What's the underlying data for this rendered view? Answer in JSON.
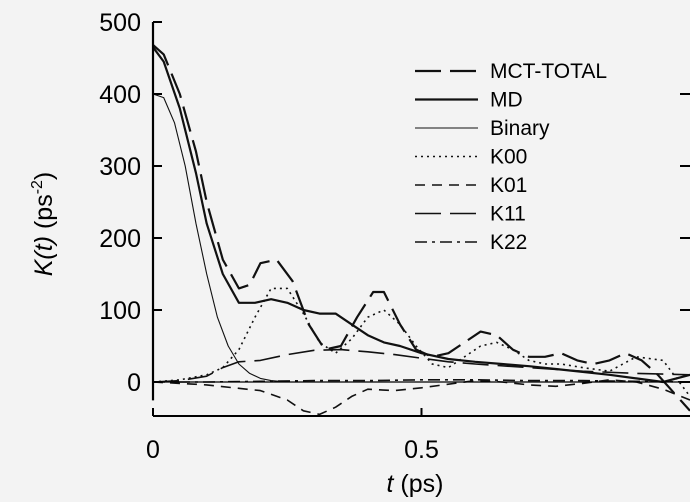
{
  "chart_data": {
    "type": "line",
    "xlabel_var": "t",
    "xlabel_unit": "(ps)",
    "ylabel_var": "K(t)",
    "ylabel_unit": "(ps",
    "ylabel_exp": "-2",
    "ylabel_close": ")",
    "xlim": [
      0,
      1.0
    ],
    "ylim": [
      -20,
      500
    ],
    "xticks": [
      {
        "value": 0,
        "label": "0"
      },
      {
        "value": 0.5,
        "label": "0.5"
      }
    ],
    "yticks": [
      {
        "value": 0,
        "label": "0"
      },
      {
        "value": 100,
        "label": "100"
      },
      {
        "value": 200,
        "label": "200"
      },
      {
        "value": 300,
        "label": "300"
      },
      {
        "value": 400,
        "label": "400"
      },
      {
        "value": 500,
        "label": "500"
      }
    ],
    "legend_position": "top-right",
    "series": [
      {
        "name": "MCT-TOTAL",
        "style": "longdash",
        "width": 2.2,
        "x": [
          0,
          0.02,
          0.05,
          0.08,
          0.1,
          0.13,
          0.16,
          0.18,
          0.2,
          0.23,
          0.26,
          0.29,
          0.32,
          0.35,
          0.38,
          0.41,
          0.43,
          0.46,
          0.49,
          0.52,
          0.55,
          0.58,
          0.61,
          0.64,
          0.67,
          0.7,
          0.73,
          0.76,
          0.79,
          0.82,
          0.85,
          0.88,
          0.91,
          0.94,
          0.97,
          1.0
        ],
        "y": [
          468,
          455,
          400,
          320,
          250,
          170,
          130,
          135,
          165,
          170,
          140,
          80,
          45,
          50,
          90,
          125,
          125,
          80,
          45,
          35,
          40,
          55,
          70,
          65,
          45,
          35,
          35,
          40,
          30,
          25,
          30,
          40,
          30,
          10,
          -15,
          -40
        ]
      },
      {
        "name": "MD",
        "style": "solid",
        "width": 2.2,
        "x": [
          0,
          0.02,
          0.05,
          0.08,
          0.1,
          0.13,
          0.16,
          0.19,
          0.22,
          0.25,
          0.28,
          0.31,
          0.34,
          0.37,
          0.4,
          0.43,
          0.46,
          0.5,
          0.55,
          0.6,
          0.65,
          0.7,
          0.75,
          0.8,
          0.85,
          0.9,
          0.95,
          1.0
        ],
        "y": [
          465,
          445,
          380,
          290,
          220,
          150,
          110,
          110,
          115,
          110,
          100,
          95,
          95,
          80,
          65,
          55,
          50,
          40,
          32,
          28,
          25,
          22,
          18,
          14,
          10,
          5,
          0,
          10
        ]
      },
      {
        "name": "Binary",
        "style": "solid",
        "width": 1.1,
        "x": [
          0,
          0.02,
          0.04,
          0.06,
          0.08,
          0.1,
          0.12,
          0.14,
          0.16,
          0.18,
          0.2,
          0.22,
          0.25,
          0.3,
          0.4,
          0.6,
          0.8,
          1.0
        ],
        "y": [
          400,
          395,
          360,
          300,
          220,
          150,
          90,
          50,
          25,
          12,
          5,
          2,
          0,
          0,
          0,
          0,
          0,
          0
        ]
      },
      {
        "name": "K00",
        "style": "dotted",
        "width": 1.6,
        "x": [
          0,
          0.05,
          0.1,
          0.13,
          0.16,
          0.19,
          0.22,
          0.25,
          0.28,
          0.31,
          0.34,
          0.37,
          0.4,
          0.43,
          0.46,
          0.49,
          0.52,
          0.55,
          0.58,
          0.61,
          0.64,
          0.67,
          0.7,
          0.73,
          0.76,
          0.8,
          0.85,
          0.9,
          0.95,
          1.0
        ],
        "y": [
          0,
          3,
          10,
          20,
          45,
          90,
          130,
          130,
          95,
          55,
          40,
          60,
          90,
          100,
          80,
          50,
          25,
          20,
          35,
          50,
          55,
          45,
          30,
          25,
          25,
          20,
          15,
          35,
          30,
          -20
        ]
      },
      {
        "name": "K01",
        "style": "shortdash",
        "width": 1.6,
        "x": [
          0,
          0.05,
          0.1,
          0.15,
          0.2,
          0.25,
          0.28,
          0.31,
          0.34,
          0.37,
          0.4,
          0.45,
          0.5,
          0.55,
          0.6,
          0.65,
          0.7,
          0.75,
          0.8,
          0.85,
          0.9,
          0.95,
          1.0
        ],
        "y": [
          0,
          -2,
          -4,
          -8,
          -12,
          -25,
          -40,
          -45,
          -35,
          -20,
          -10,
          -12,
          -8,
          -3,
          2,
          0,
          -4,
          -6,
          -2,
          3,
          0,
          -10,
          -25
        ]
      },
      {
        "name": "K11",
        "style": "longdash",
        "width": 1.6,
        "x": [
          0,
          0.05,
          0.1,
          0.13,
          0.16,
          0.2,
          0.25,
          0.3,
          0.35,
          0.4,
          0.45,
          0.5,
          0.55,
          0.6,
          0.7,
          0.8,
          0.9,
          1.0
        ],
        "y": [
          0,
          2,
          8,
          20,
          28,
          30,
          38,
          44,
          45,
          42,
          38,
          33,
          28,
          25,
          20,
          15,
          12,
          10
        ]
      },
      {
        "name": "K22",
        "style": "dashdot",
        "width": 1.6,
        "x": [
          0,
          0.1,
          0.2,
          0.3,
          0.4,
          0.5,
          0.6,
          0.7,
          0.8,
          0.9,
          1.0
        ],
        "y": [
          0,
          0,
          1,
          2,
          2,
          3,
          3,
          2,
          2,
          1,
          0
        ]
      }
    ]
  }
}
